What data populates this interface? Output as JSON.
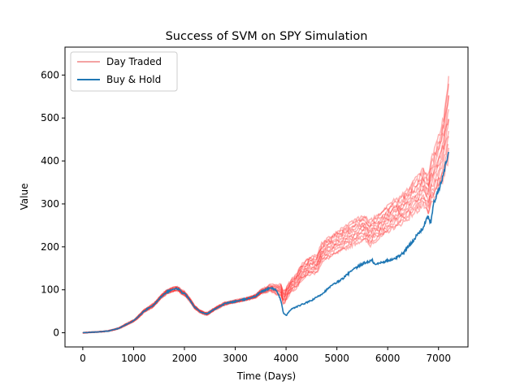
{
  "chart_data": {
    "type": "line",
    "title": "Success of SVM on SPY Simulation",
    "xlabel": "Time (Days)",
    "ylabel": "Value",
    "xlim": [
      -350,
      7580
    ],
    "ylim": [
      -33,
      665
    ],
    "xticks": [
      0,
      1000,
      2000,
      3000,
      4000,
      5000,
      6000,
      7000
    ],
    "yticks": [
      0,
      100,
      200,
      300,
      400,
      500,
      600
    ],
    "grid": false,
    "legend_position": "top-left",
    "series": [
      {
        "name": "Day Traded",
        "color": "#ff0000",
        "legend_color": "#f4a3a3",
        "opacity": 0.3,
        "runs": 12,
        "x": [
          0,
          300,
          500,
          700,
          900,
          1000,
          1100,
          1200,
          1400,
          1550,
          1650,
          1750,
          1850,
          1900,
          1950,
          2000,
          2100,
          2200,
          2300,
          2400,
          2450,
          2550,
          2700,
          2800,
          3000,
          3200,
          3400,
          3500,
          3600,
          3700,
          3800,
          3900,
          3950,
          4000,
          4100,
          4200,
          4300,
          4450,
          4600,
          4700,
          4800,
          5000,
          5200,
          5400,
          5550,
          5650,
          5700,
          5800,
          6000,
          6100,
          6200,
          6300,
          6400,
          6500,
          6600,
          6700,
          6800,
          6850,
          6900,
          7000,
          7100,
          7150,
          7200
        ],
        "center": [
          0,
          2,
          4,
          10,
          22,
          28,
          38,
          50,
          65,
          85,
          95,
          100,
          103,
          100,
          94,
          92,
          78,
          60,
          50,
          45,
          44,
          52,
          62,
          68,
          73,
          78,
          85,
          95,
          100,
          105,
          100,
          100,
          80,
          90,
          110,
          120,
          140,
          155,
          160,
          185,
          195,
          210,
          225,
          238,
          245,
          230,
          238,
          245,
          265,
          275,
          280,
          290,
          300,
          315,
          325,
          340,
          320,
          350,
          360,
          395,
          430,
          465,
          500
        ],
        "spread": [
          0,
          0,
          0.5,
          1,
          2,
          2,
          3,
          3,
          4,
          4,
          5,
          5,
          5,
          5,
          5,
          5,
          4,
          4,
          3,
          3,
          3,
          3,
          3,
          3,
          3,
          3,
          4,
          5,
          6,
          8,
          10,
          13,
          15,
          14,
          14,
          16,
          18,
          20,
          20,
          22,
          23,
          25,
          27,
          28,
          28,
          28,
          28,
          28,
          30,
          31,
          32,
          33,
          35,
          38,
          40,
          42,
          45,
          50,
          55,
          60,
          70,
          80,
          95
        ]
      },
      {
        "name": "Buy & Hold",
        "color": "#1f77b4",
        "x": [
          0,
          300,
          500,
          700,
          900,
          1000,
          1100,
          1200,
          1400,
          1550,
          1650,
          1750,
          1850,
          1900,
          1950,
          2000,
          2100,
          2200,
          2300,
          2400,
          2450,
          2550,
          2700,
          2800,
          3000,
          3200,
          3400,
          3500,
          3600,
          3700,
          3800,
          3900,
          3950,
          4000,
          4100,
          4300,
          4500,
          4700,
          4900,
          5100,
          5300,
          5500,
          5600,
          5700,
          5750,
          5900,
          6100,
          6300,
          6400,
          6500,
          6600,
          6700,
          6750,
          6800,
          6850,
          6900,
          7000,
          7100,
          7150,
          7200
        ],
        "y": [
          0,
          2,
          4,
          10,
          22,
          28,
          38,
          50,
          65,
          85,
          95,
          100,
          103,
          100,
          94,
          92,
          78,
          60,
          50,
          45,
          44,
          52,
          62,
          68,
          73,
          78,
          85,
          95,
          100,
          105,
          100,
          75,
          45,
          40,
          55,
          65,
          75,
          90,
          110,
          125,
          145,
          160,
          165,
          168,
          158,
          165,
          170,
          185,
          200,
          215,
          230,
          245,
          260,
          270,
          255,
          300,
          330,
          370,
          400,
          420
        ]
      }
    ]
  }
}
